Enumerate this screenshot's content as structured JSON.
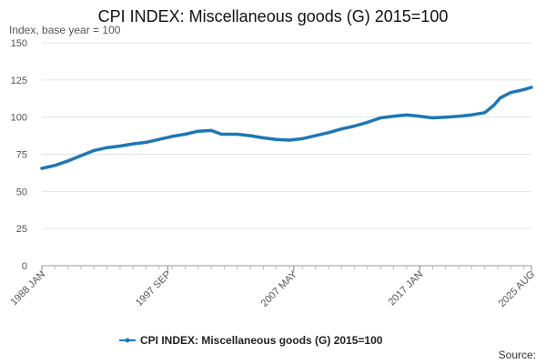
{
  "chart_data": {
    "type": "line",
    "title": "CPI INDEX: Miscellaneous goods (G) 2015=100",
    "subtitle": "Index, base year = 100",
    "source_label": "Source:",
    "legend_position": "bottom-center",
    "grid": true,
    "color": "#1f77b4",
    "ylim": [
      0,
      150
    ],
    "y_ticks": [
      0,
      25,
      50,
      75,
      100,
      125,
      150
    ],
    "x_range": [
      1988.0,
      2025.583
    ],
    "x_ticks": [
      {
        "label": "1988 JAN",
        "x": 1988.0
      },
      {
        "label": "1997 SEP",
        "x": 1997.667
      },
      {
        "label": "2007 MAY",
        "x": 2007.333
      },
      {
        "label": "2017 JAN",
        "x": 2017.0
      },
      {
        "label": "2025 AUG",
        "x": 2025.583
      }
    ],
    "series": [
      {
        "name": "CPI INDEX: Miscellaneous goods (G) 2015=100",
        "points": [
          [
            1988.0,
            65.5
          ],
          [
            1989.0,
            67.5
          ],
          [
            1990.0,
            70.5
          ],
          [
            1991.0,
            74.0
          ],
          [
            1992.0,
            77.5
          ],
          [
            1993.0,
            79.5
          ],
          [
            1994.0,
            80.5
          ],
          [
            1995.0,
            82.0
          ],
          [
            1996.0,
            83.0
          ],
          [
            1997.0,
            85.0
          ],
          [
            1998.0,
            87.0
          ],
          [
            1999.0,
            88.5
          ],
          [
            2000.0,
            90.5
          ],
          [
            2001.0,
            91.0
          ],
          [
            2001.8,
            88.5
          ],
          [
            2003.0,
            88.5
          ],
          [
            2004.0,
            87.5
          ],
          [
            2005.0,
            86.0
          ],
          [
            2006.0,
            85.0
          ],
          [
            2007.0,
            84.5
          ],
          [
            2008.0,
            85.5
          ],
          [
            2009.0,
            87.5
          ],
          [
            2010.0,
            89.5
          ],
          [
            2011.0,
            92.0
          ],
          [
            2012.0,
            94.0
          ],
          [
            2013.0,
            96.5
          ],
          [
            2014.0,
            99.5
          ],
          [
            2015.0,
            100.5
          ],
          [
            2016.0,
            101.5
          ],
          [
            2017.0,
            100.5
          ],
          [
            2018.0,
            99.5
          ],
          [
            2019.0,
            100.0
          ],
          [
            2020.0,
            100.5
          ],
          [
            2021.0,
            101.5
          ],
          [
            2022.0,
            103.0
          ],
          [
            2022.7,
            108.0
          ],
          [
            2023.2,
            113.0
          ],
          [
            2024.0,
            116.5
          ],
          [
            2025.0,
            118.5
          ],
          [
            2025.583,
            120.0
          ]
        ]
      }
    ]
  }
}
